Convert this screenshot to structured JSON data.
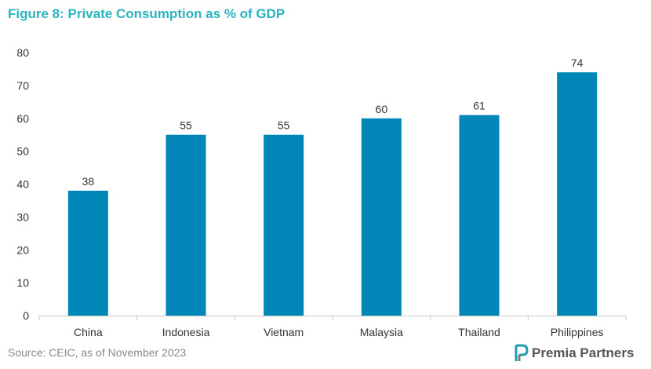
{
  "title": "Figure 8: Private Consumption as % of GDP",
  "source": "Source: CEIC, as of November 2023",
  "logo": {
    "text": "Premia Partners",
    "icon": "premia-logo-icon"
  },
  "colors": {
    "bar": "#0087b8",
    "title": "#2bb3c0",
    "axis": "#c8c8c8",
    "logo_icon": "#1a9eb0"
  },
  "chart_data": {
    "type": "bar",
    "title": "Figure 8: Private Consumption as % of GDP",
    "xlabel": "",
    "ylabel": "",
    "ylim": [
      0,
      80
    ],
    "yticks": [
      0,
      10,
      20,
      30,
      40,
      50,
      60,
      70,
      80
    ],
    "grid": false,
    "categories": [
      "China",
      "Indonesia",
      "Vietnam",
      "Malaysia",
      "Thailand",
      "Philippines"
    ],
    "values": [
      38,
      55,
      55,
      60,
      61,
      74
    ],
    "data_labels": [
      "38",
      "55",
      "55",
      "60",
      "61",
      "74"
    ]
  }
}
